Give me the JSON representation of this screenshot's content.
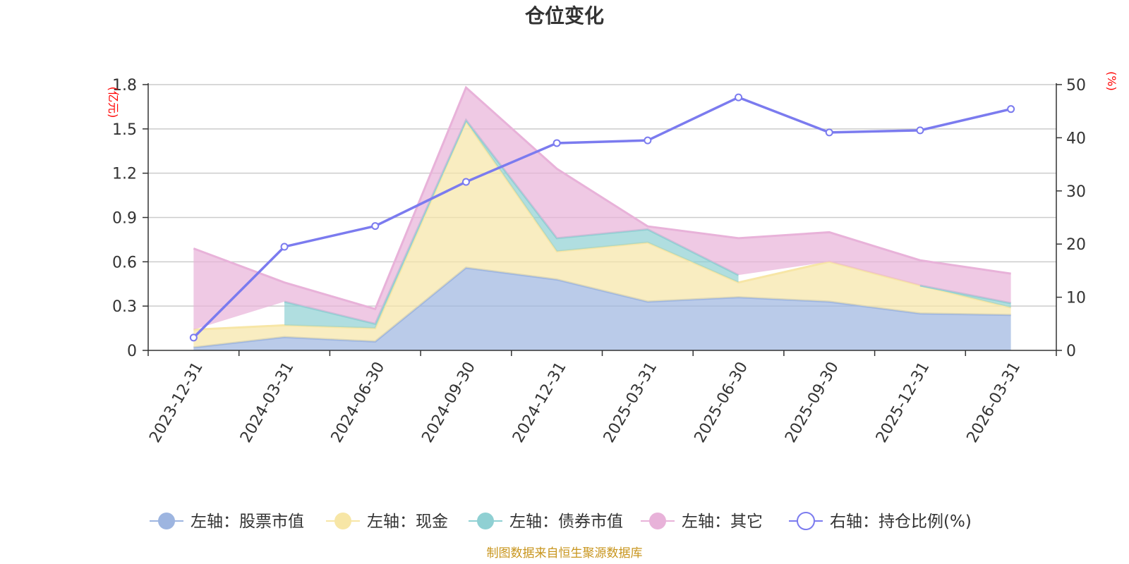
{
  "chart_data": {
    "type": "area",
    "title": "仓位变化",
    "categories": [
      "2023-12-31",
      "2024-03-31",
      "2024-06-30",
      "2024-09-30",
      "2024-12-31",
      "2025-03-31",
      "2025-06-30",
      "2025-09-30",
      "2025-12-31",
      "2026-03-31"
    ],
    "left_axis": {
      "unit": "(亿元)",
      "ylim": [
        0,
        1.8
      ],
      "ticks": [
        "0",
        "0.3",
        "0.6",
        "0.9",
        "1.2",
        "1.5",
        "1.8"
      ]
    },
    "right_axis": {
      "unit": "(%)",
      "ylim": [
        0,
        50
      ],
      "ticks": [
        "0",
        "10",
        "20",
        "30",
        "40",
        "50"
      ]
    },
    "series": [
      {
        "name": "左轴：股票市值",
        "axis": "left",
        "kind": "stacked-area",
        "color": "#9db5e0",
        "values": [
          0.02,
          0.09,
          0.06,
          0.56,
          0.48,
          0.33,
          0.36,
          0.33,
          0.25,
          0.24
        ]
      },
      {
        "name": "左轴：现金",
        "axis": "left",
        "kind": "stacked-area",
        "color": "#f7e6a6",
        "values": [
          0.12,
          0.08,
          0.09,
          0.99,
          0.19,
          0.4,
          0.1,
          0.27,
          0.19,
          0.05
        ]
      },
      {
        "name": "左轴：债券市值",
        "axis": "left",
        "kind": "stacked-area",
        "color": "#8fd0d3",
        "values": [
          null,
          0.16,
          0.03,
          0.01,
          0.09,
          0.09,
          0.05,
          null,
          0.0,
          0.03
        ]
      },
      {
        "name": "左轴：其它",
        "axis": "left",
        "kind": "stacked-area",
        "color": "#e8b2d9",
        "values": [
          0.55,
          0.13,
          0.1,
          0.22,
          0.47,
          0.02,
          0.25,
          0.2,
          0.17,
          0.2
        ]
      },
      {
        "name": "右轴：持仓比例(%)",
        "axis": "right",
        "kind": "line",
        "color": "#7b7bef",
        "values": [
          2.4,
          19.5,
          23.4,
          31.7,
          39.0,
          39.5,
          47.6,
          41.0,
          41.4,
          45.4
        ]
      }
    ]
  },
  "source_note": "制图数据来自恒生聚源数据库"
}
